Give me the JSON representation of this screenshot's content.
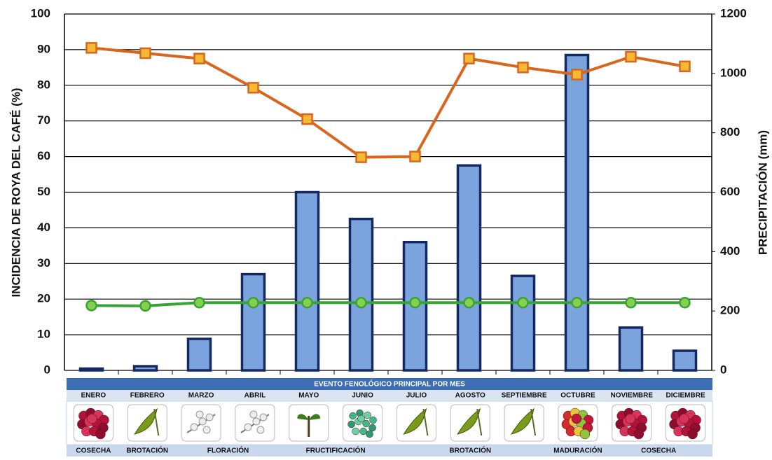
{
  "chart_data": {
    "type": "bar-line",
    "y_label": "INCIDENCIA DE ROYA DEL CAFÉ (%)",
    "y2_label": "PRECIPITACIÓN (mm)",
    "categories": [
      "ENERO",
      "FEBRERO",
      "MARZO",
      "ABRIL",
      "MAYO",
      "JUNIO",
      "JULIO",
      "AGOSTO",
      "SEPTIEMBRE",
      "OCTUBRE",
      "NOVIEMBRE",
      "DICIEMBRE"
    ],
    "ylim": [
      0,
      100
    ],
    "yticks": [
      0,
      10,
      20,
      30,
      40,
      50,
      60,
      70,
      80,
      90,
      100
    ],
    "y2lim": [
      0,
      1200
    ],
    "y2ticks": [
      0,
      200,
      400,
      600,
      800,
      1000,
      1200
    ],
    "grid": true,
    "series": [
      {
        "type": "bar",
        "axis": "y2",
        "color": "#7ba4de",
        "values": [
          6,
          14,
          106,
          324,
          600,
          510,
          432,
          690,
          318,
          1062,
          144,
          66
        ]
      },
      {
        "type": "line",
        "color": "#d9661c",
        "values": [
          90.5,
          89,
          87.5,
          79.3,
          70.5,
          59.8,
          60,
          87.5,
          85,
          83,
          88,
          85.3
        ]
      },
      {
        "type": "line",
        "color": "#3aa335",
        "values": [
          18.2,
          18.1,
          19,
          19,
          19,
          19,
          19,
          19,
          19,
          19,
          19,
          19
        ]
      }
    ],
    "phenology": {
      "title": "EVENTO FENOLÓGICO PRINCIPAL POR MES",
      "stages": [
        "COSECHA",
        "BROTACIÓN",
        "FLORACIÓN",
        "FRUCTIFICACIÓN",
        "BROTACIÓN",
        "MADURACIÓN",
        "COSECHA"
      ]
    }
  }
}
